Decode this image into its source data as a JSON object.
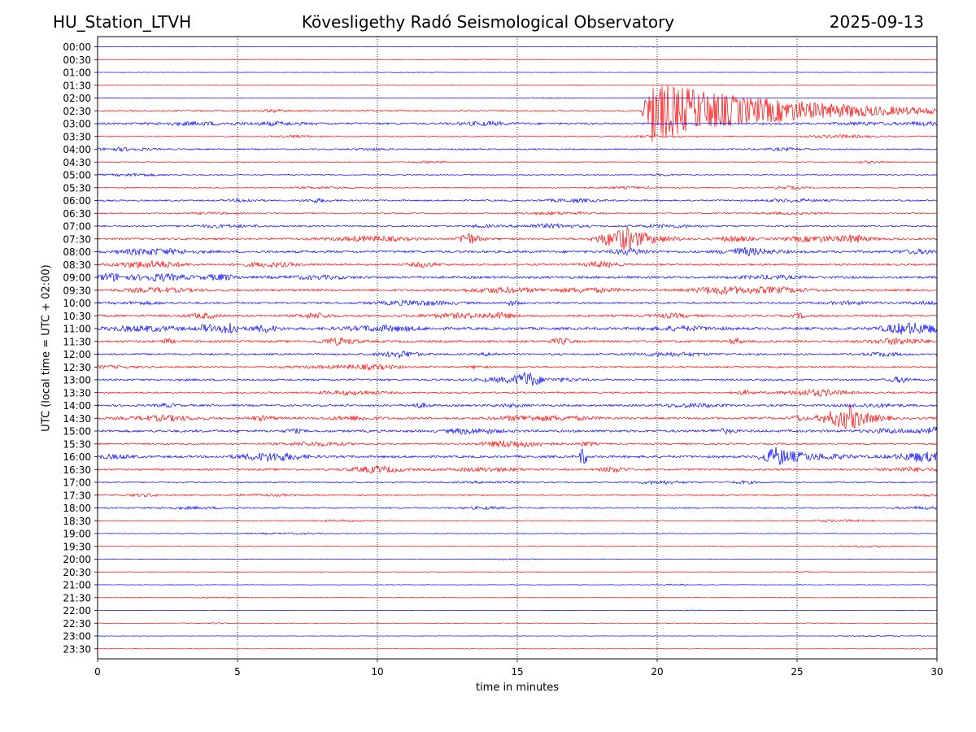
{
  "header": {
    "station": "HU_Station_LTVH",
    "observatory": "Kövesligethy Radó Seismological Observatory",
    "date": "2025-09-13"
  },
  "chart_data": {
    "type": "line",
    "title": "Kövesligethy Radó Seismological Observatory",
    "xlabel": "time in minutes",
    "ylabel": "UTC (local time = UTC + 02:00)",
    "xlim": [
      0,
      30
    ],
    "x_ticks": [
      0,
      5,
      10,
      15,
      20,
      25,
      30
    ],
    "grid": "vertical dotted lines at 5-minute intervals",
    "row_labels": [
      "00:00",
      "00:30",
      "01:00",
      "01:30",
      "02:00",
      "02:30",
      "03:00",
      "03:30",
      "04:00",
      "04:30",
      "05:00",
      "05:30",
      "06:00",
      "06:30",
      "07:00",
      "07:30",
      "08:00",
      "08:30",
      "09:00",
      "09:30",
      "10:00",
      "10:30",
      "11:00",
      "11:30",
      "12:00",
      "12:30",
      "13:00",
      "13:30",
      "14:00",
      "14:30",
      "15:00",
      "15:30",
      "16:00",
      "16:30",
      "17:00",
      "17:30",
      "18:00",
      "18:30",
      "19:00",
      "19:30",
      "20:00",
      "20:30",
      "21:00",
      "21:30",
      "22:00",
      "22:30",
      "23:00",
      "23:30"
    ],
    "colors": {
      "even_rows": "#0000ff",
      "odd_rows": "#ff0000"
    },
    "noise_level": [
      0.4,
      0.4,
      0.4,
      0.5,
      0.5,
      1.5,
      2.2,
      1.2,
      1.5,
      0.9,
      1.1,
      1.2,
      1.7,
      1.3,
      1.8,
      2.2,
      2.6,
      2.1,
      2.6,
      2.4,
      2.0,
      2.4,
      2.9,
      2.4,
      2.0,
      1.7,
      2.2,
      1.8,
      2.2,
      2.5,
      2.6,
      1.8,
      2.6,
      2.1,
      1.4,
      1.4,
      1.5,
      0.8,
      0.8,
      0.7,
      0.6,
      0.6,
      0.5,
      0.5,
      0.4,
      0.6,
      0.4,
      0.4
    ],
    "events": [
      {
        "row": "02:30",
        "start_min": 19.4,
        "peak_min": 19.8,
        "end_min": 30,
        "peak_amplitude": 9.5,
        "note": "earthquake signal"
      },
      {
        "row": "07:30",
        "start_min": 17.5,
        "peak_min": 18.9,
        "end_min": 21,
        "peak_amplitude": 3.5
      },
      {
        "row": "07:30",
        "start_min": 12.8,
        "peak_min": 13.2,
        "end_min": 14,
        "peak_amplitude": 2.4
      },
      {
        "row": "14:30",
        "start_min": 25.5,
        "peak_min": 26.9,
        "end_min": 28.5,
        "peak_amplitude": 3.6
      },
      {
        "row": "16:00",
        "start_min": 17.2,
        "peak_min": 17.3,
        "end_min": 17.5,
        "peak_amplitude": 2.8
      },
      {
        "row": "16:00",
        "start_min": 23.5,
        "peak_min": 24.3,
        "end_min": 25.5,
        "peak_amplitude": 2.8
      },
      {
        "row": "11:00",
        "start_min": 4.3,
        "peak_min": 4.7,
        "end_min": 5.0,
        "peak_amplitude": 2.5
      },
      {
        "row": "13:00",
        "start_min": 14.8,
        "peak_min": 15.3,
        "end_min": 15.8,
        "peak_amplitude": 1.8
      }
    ]
  }
}
